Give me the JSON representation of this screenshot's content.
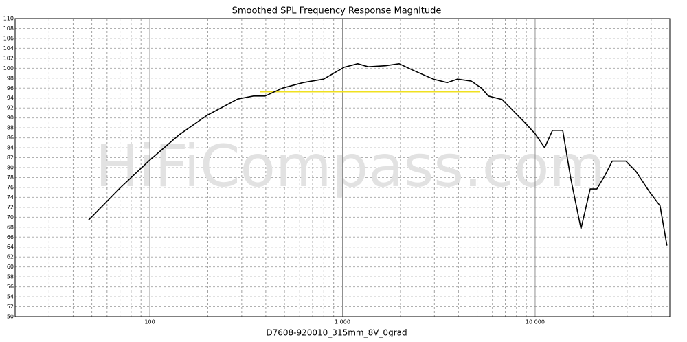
{
  "chart_data": {
    "type": "line",
    "title": "Smoothed SPL Frequency Response Magnitude",
    "x_label": "D7608-920010_315mm_8V_0grad",
    "watermark": "HiFiCompass.com",
    "log_x": true,
    "grid": true,
    "xlim": [
      20,
      50000
    ],
    "xticks": [
      100,
      {
        "value": 1000,
        "label": "1 000"
      },
      {
        "value": 10000,
        "label": "10 000"
      }
    ],
    "xminor_ticks": [
      20,
      30,
      40,
      50,
      60,
      70,
      80,
      90,
      200,
      300,
      400,
      500,
      600,
      700,
      800,
      900,
      2000,
      3000,
      4000,
      5000,
      6000,
      7000,
      8000,
      9000,
      20000,
      30000,
      40000,
      50000
    ],
    "ylim": [
      50,
      110
    ],
    "yticks": [
      50,
      52,
      54,
      56,
      58,
      60,
      62,
      64,
      66,
      68,
      70,
      72,
      74,
      76,
      78,
      80,
      82,
      84,
      86,
      88,
      90,
      92,
      94,
      96,
      98,
      100,
      102,
      104,
      106,
      108,
      110
    ],
    "series": [
      {
        "color": "#000000",
        "x": [
          48,
          71,
          100,
          142,
          198,
          286,
          345,
          397,
          488,
          624,
          798,
          1020,
          1200,
          1360,
          1670,
          1970,
          2320,
          2960,
          3500,
          3950,
          4660,
          5270,
          5720,
          6740,
          7620,
          8620,
          10000,
          11200,
          12300,
          13900,
          15300,
          17300,
          19300,
          20900,
          23100,
          25100,
          29600,
          33400,
          39400,
          44500,
          48300
        ],
        "values": [
          69.4,
          76.1,
          81.5,
          86.6,
          90.5,
          93.8,
          94.4,
          94.4,
          96.0,
          97.1,
          97.8,
          100.2,
          100.9,
          100.3,
          100.5,
          100.9,
          99.6,
          97.8,
          97.1,
          97.8,
          97.4,
          96.0,
          94.4,
          93.7,
          91.6,
          89.5,
          86.8,
          84.0,
          87.5,
          87.5,
          77.8,
          67.7,
          75.7,
          75.7,
          78.5,
          81.3,
          81.3,
          79.2,
          75.0,
          72.3,
          64.3
        ]
      },
      {
        "color": "#f0e020",
        "x": [
          372,
          5160
        ],
        "values": [
          95.3,
          95.3
        ]
      }
    ]
  }
}
